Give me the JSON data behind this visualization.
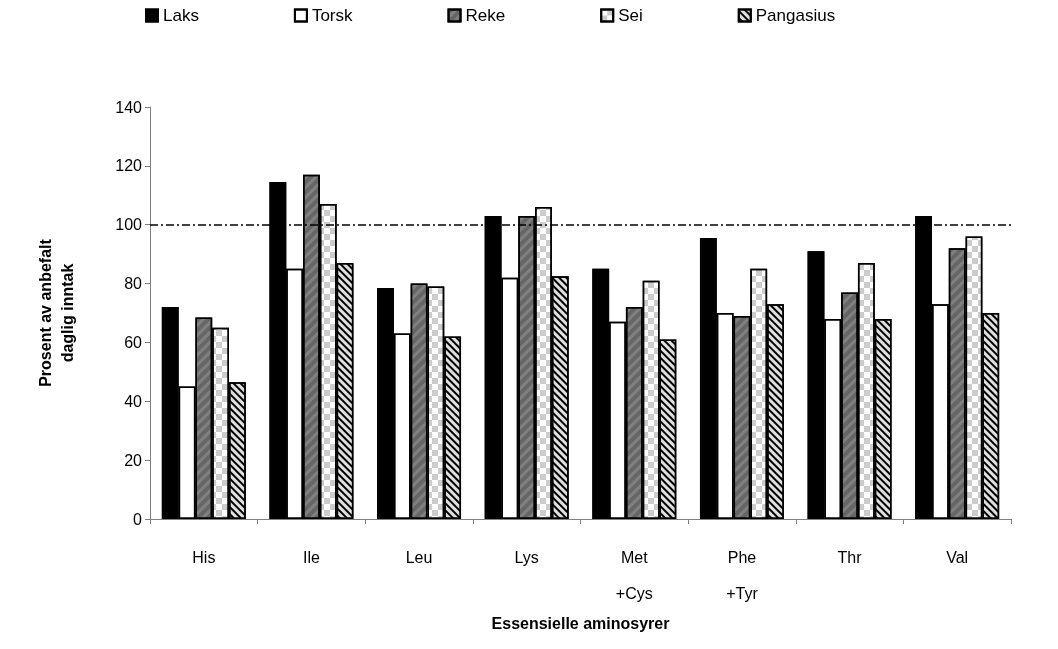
{
  "chart_data": {
    "type": "bar",
    "xlabel": "Essensielle aminosyrer",
    "ylabel": "Prosent av anbefalt\ndaglig inntak",
    "categories": [
      "His",
      "Ile",
      "Leu",
      "Lys",
      "Met\n+Cys",
      "Phe\n+Tyr",
      "Thr",
      "Val"
    ],
    "series": [
      {
        "name": "Laks",
        "color": "#000000",
        "values": [
          72,
          114.5,
          78.5,
          103,
          85,
          95.5,
          91,
          103
        ]
      },
      {
        "name": "Torsk",
        "color": "#ffffff",
        "values": [
          45,
          85,
          63,
          82,
          67,
          70,
          68,
          73
        ]
      },
      {
        "name": "Reke",
        "color": "#808080",
        "values": [
          68.5,
          117,
          80,
          103,
          72,
          69,
          77,
          92
        ]
      },
      {
        "name": "Sei",
        "color": "#ffffff",
        "values": [
          65,
          107,
          79,
          106,
          81,
          85,
          87,
          96
        ]
      },
      {
        "name": "Pangasius",
        "color": "#e0e0e0",
        "values": [
          46.5,
          87,
          62,
          82.5,
          61,
          73,
          68,
          70
        ]
      }
    ],
    "ylim": [
      0,
      140
    ],
    "yticks": [
      0,
      20,
      40,
      60,
      80,
      100,
      120,
      140
    ],
    "ref_lines": [
      {
        "axis": "y",
        "value": 100,
        "line_style": "dashDot",
        "color": "#000000"
      }
    ],
    "grid": false,
    "legend": "top"
  }
}
